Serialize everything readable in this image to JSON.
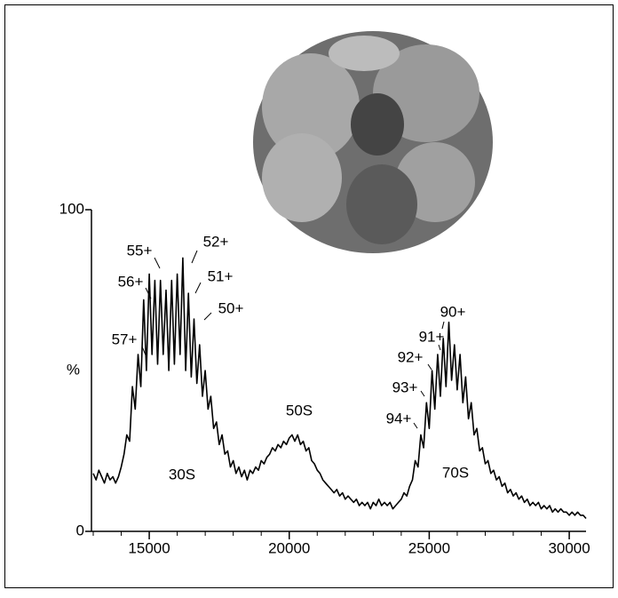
{
  "chart_data": {
    "type": "line",
    "y_axis_label": "%",
    "annotations": [
      "57+",
      "56+",
      "55+",
      "52+",
      "51+",
      "50+",
      "90+",
      "91+",
      "92+",
      "93+",
      "94+",
      "50S",
      "30S",
      "70S"
    ],
    "xlim": [
      13000,
      30600
    ],
    "xticks": [
      15000,
      20000,
      25000,
      30000
    ],
    "ylim": [
      0,
      100
    ],
    "yticks": [
      0,
      100
    ],
    "color": "#000000",
    "x": [
      13000,
      13100,
      13200,
      13300,
      13400,
      13500,
      13600,
      13700,
      13800,
      13900,
      14000,
      14100,
      14200,
      14300,
      14400,
      14500,
      14600,
      14700,
      14800,
      14900,
      15000,
      15100,
      15200,
      15300,
      15400,
      15500,
      15600,
      15700,
      15800,
      15900,
      16000,
      16100,
      16200,
      16300,
      16400,
      16500,
      16600,
      16700,
      16800,
      16900,
      17000,
      17100,
      17200,
      17300,
      17400,
      17500,
      17600,
      17700,
      17800,
      17900,
      18000,
      18100,
      18200,
      18300,
      18400,
      18500,
      18600,
      18700,
      18800,
      18900,
      19000,
      19100,
      19200,
      19300,
      19400,
      19500,
      19600,
      19700,
      19800,
      19900,
      20000,
      20100,
      20200,
      20300,
      20400,
      20500,
      20600,
      20700,
      20800,
      20900,
      21000,
      21100,
      21200,
      21300,
      21400,
      21500,
      21600,
      21700,
      21800,
      21900,
      22000,
      22100,
      22200,
      22300,
      22400,
      22500,
      22600,
      22700,
      22800,
      22900,
      23000,
      23100,
      23200,
      23300,
      23400,
      23500,
      23600,
      23700,
      23800,
      23900,
      24000,
      24100,
      24200,
      24300,
      24400,
      24500,
      24600,
      24700,
      24800,
      24900,
      25000,
      25100,
      25200,
      25300,
      25400,
      25500,
      25600,
      25700,
      25800,
      25900,
      26000,
      26100,
      26200,
      26300,
      26400,
      26500,
      26600,
      26700,
      26800,
      26900,
      27000,
      27100,
      27200,
      27300,
      27400,
      27500,
      27600,
      27700,
      27800,
      27900,
      28000,
      28100,
      28200,
      28300,
      28400,
      28500,
      28600,
      28700,
      28800,
      28900,
      29000,
      29100,
      29200,
      29300,
      29400,
      29500,
      29600,
      29700,
      29800,
      29900,
      30000,
      30100,
      30200,
      30300,
      30400,
      30500,
      30600
    ],
    "values": [
      18,
      16,
      19,
      17,
      15,
      18,
      16,
      17,
      15,
      17,
      20,
      24,
      30,
      28,
      45,
      38,
      55,
      45,
      72,
      50,
      80,
      55,
      78,
      52,
      78,
      55,
      75,
      50,
      78,
      52,
      80,
      55,
      85,
      50,
      74,
      48,
      66,
      46,
      58,
      42,
      50,
      38,
      42,
      32,
      34,
      27,
      30,
      24,
      25,
      20,
      22,
      18,
      20,
      17,
      19,
      16,
      19,
      18,
      20,
      19,
      22,
      21,
      23,
      24,
      26,
      25,
      27,
      26,
      28,
      27,
      29,
      30,
      28,
      30,
      27,
      28,
      25,
      26,
      22,
      21,
      19,
      18,
      16,
      15,
      14,
      13,
      12,
      13,
      11,
      12,
      10,
      11,
      10,
      9,
      10,
      8,
      9,
      8,
      9,
      7,
      9,
      8,
      10,
      8,
      9,
      8,
      9,
      7,
      8,
      9,
      10,
      12,
      11,
      14,
      16,
      22,
      20,
      30,
      26,
      40,
      32,
      50,
      38,
      55,
      42,
      60,
      45,
      65,
      47,
      58,
      44,
      55,
      40,
      48,
      35,
      40,
      30,
      32,
      25,
      26,
      21,
      22,
      18,
      19,
      16,
      17,
      14,
      15,
      12,
      13,
      11,
      12,
      10,
      11,
      9,
      10,
      8,
      9,
      8,
      9,
      7,
      8,
      7,
      8,
      6,
      7,
      6,
      7,
      6,
      6,
      5,
      6,
      5,
      6,
      5,
      5,
      4
    ]
  }
}
